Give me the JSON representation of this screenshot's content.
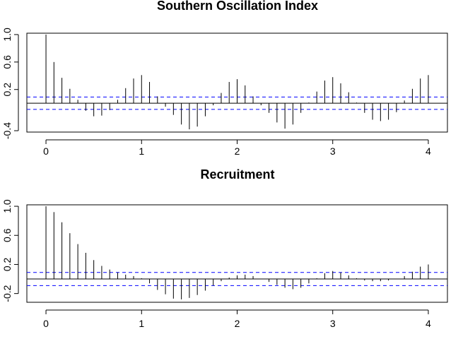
{
  "chart_data": [
    {
      "type": "bar",
      "title": "Southern Oscillation Index",
      "xlabel": "",
      "ylabel": "",
      "xlim": [
        -0.2,
        4.2
      ],
      "ylim": [
        -0.42,
        1.02
      ],
      "x_ticks": [
        0,
        1,
        2,
        3,
        4
      ],
      "x_tick_labels": [
        "0",
        "1",
        "2",
        "3",
        "4"
      ],
      "y_ticks": [
        -0.4,
        0.2,
        0.6,
        1.0
      ],
      "y_tick_labels": [
        "-0.4",
        "0.2",
        "0.6",
        "1.0"
      ],
      "ci_level": 0.09,
      "ci_color": "#0000ff",
      "lags": [
        0,
        0.0833,
        0.1667,
        0.25,
        0.3333,
        0.4167,
        0.5,
        0.5833,
        0.6667,
        0.75,
        0.8333,
        0.9167,
        1.0,
        1.0833,
        1.1667,
        1.25,
        1.3333,
        1.4167,
        1.5,
        1.5833,
        1.6667,
        1.75,
        1.8333,
        1.9167,
        2.0,
        2.0833,
        2.1667,
        2.25,
        2.3333,
        2.4167,
        2.5,
        2.5833,
        2.6667,
        2.75,
        2.8333,
        2.9167,
        3.0,
        3.0833,
        3.1667,
        3.25,
        3.3333,
        3.4167,
        3.5,
        3.5833,
        3.6667,
        3.75,
        3.8333,
        3.9167,
        4.0
      ],
      "values": [
        1.0,
        0.6,
        0.37,
        0.21,
        0.05,
        -0.11,
        -0.19,
        -0.18,
        -0.1,
        0.05,
        0.22,
        0.36,
        0.41,
        0.31,
        0.1,
        -0.05,
        -0.17,
        -0.31,
        -0.38,
        -0.34,
        -0.19,
        -0.03,
        0.15,
        0.31,
        0.35,
        0.26,
        0.1,
        -0.03,
        -0.14,
        -0.28,
        -0.37,
        -0.31,
        -0.14,
        0.01,
        0.17,
        0.33,
        0.38,
        0.29,
        0.16,
        0.01,
        -0.14,
        -0.24,
        -0.26,
        -0.24,
        -0.13,
        0.04,
        0.21,
        0.36,
        0.41
      ]
    },
    {
      "type": "bar",
      "title": "Recruitment",
      "xlabel": "",
      "ylabel": "",
      "xlim": [
        -0.2,
        4.2
      ],
      "ylim": [
        -0.32,
        1.02
      ],
      "x_ticks": [
        0,
        1,
        2,
        3,
        4
      ],
      "x_tick_labels": [
        "0",
        "1",
        "2",
        "3",
        "4"
      ],
      "y_ticks": [
        -0.2,
        0.2,
        0.6,
        1.0
      ],
      "y_tick_labels": [
        "-0.2",
        "0.2",
        "0.6",
        "1.0"
      ],
      "ci_level": 0.09,
      "ci_color": "#0000ff",
      "lags": [
        0,
        0.0833,
        0.1667,
        0.25,
        0.3333,
        0.4167,
        0.5,
        0.5833,
        0.6667,
        0.75,
        0.8333,
        0.9167,
        1.0,
        1.0833,
        1.1667,
        1.25,
        1.3333,
        1.4167,
        1.5,
        1.5833,
        1.6667,
        1.75,
        1.8333,
        1.9167,
        2.0,
        2.0833,
        2.1667,
        2.25,
        2.3333,
        2.4167,
        2.5,
        2.5833,
        2.6667,
        2.75,
        2.8333,
        2.9167,
        3.0,
        3.0833,
        3.1667,
        3.25,
        3.3333,
        3.4167,
        3.5,
        3.5833,
        3.6667,
        3.75,
        3.8333,
        3.9167,
        4.0
      ],
      "values": [
        1.0,
        0.92,
        0.78,
        0.63,
        0.48,
        0.36,
        0.26,
        0.18,
        0.13,
        0.09,
        0.06,
        0.04,
        0.01,
        -0.06,
        -0.15,
        -0.21,
        -0.27,
        -0.28,
        -0.26,
        -0.22,
        -0.16,
        -0.09,
        -0.03,
        0.02,
        0.05,
        0.06,
        0.04,
        0.0,
        -0.04,
        -0.08,
        -0.12,
        -0.14,
        -0.12,
        -0.06,
        0.01,
        0.08,
        0.11,
        0.09,
        0.05,
        0.01,
        -0.02,
        -0.03,
        -0.03,
        -0.02,
        0.0,
        0.04,
        0.1,
        0.17,
        0.2
      ]
    }
  ]
}
